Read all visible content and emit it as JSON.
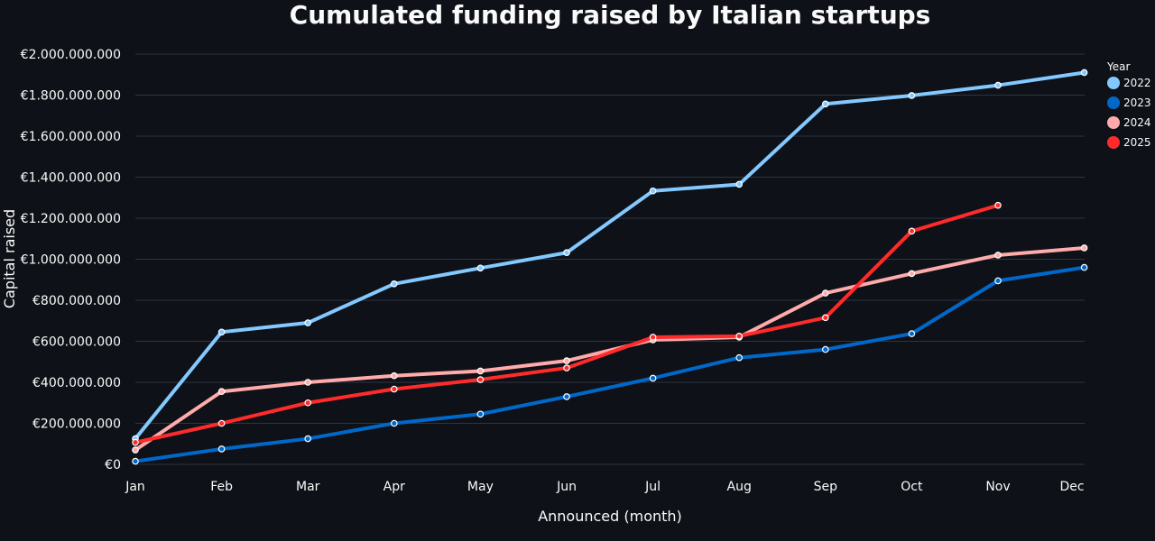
{
  "chart_data": {
    "type": "line",
    "title": "Cumulated funding raised by Italian startups",
    "xlabel": "Announced (month)",
    "ylabel": "Capital raised",
    "categories": [
      "Jan",
      "Feb",
      "Mar",
      "Apr",
      "May",
      "Jun",
      "Jul",
      "Aug",
      "Sep",
      "Oct",
      "Nov",
      "Dec"
    ],
    "ylim": [
      0,
      2000000000
    ],
    "yticks": [
      0,
      200000000,
      400000000,
      600000000,
      800000000,
      1000000000,
      1200000000,
      1400000000,
      1600000000,
      1800000000,
      2000000000
    ],
    "ytick_labels": [
      "€0",
      "€200.000.000",
      "€400.000.000",
      "€600.000.000",
      "€800.000.000",
      "€1.000.000.000",
      "€1.200.000.000",
      "€1.400.000.000",
      "€1.600.000.000",
      "€1.800.000.000",
      "€2.000.000.000"
    ],
    "grid": true,
    "legend_title": "Year",
    "legend_position": "right",
    "series": [
      {
        "name": "2022",
        "color": "#83c9ff",
        "values": [
          125000000,
          645000000,
          690000000,
          880000000,
          957000000,
          1032000000,
          1333000000,
          1365000000,
          1757000000,
          1798000000,
          1848000000,
          1910000000
        ]
      },
      {
        "name": "2023",
        "color": "#0068c9",
        "values": [
          15000000,
          75000000,
          125000000,
          200000000,
          245000000,
          330000000,
          420000000,
          520000000,
          560000000,
          637000000,
          895000000,
          960000000
        ]
      },
      {
        "name": "2024",
        "color": "#ffabab",
        "values": [
          70000000,
          355000000,
          400000000,
          432000000,
          455000000,
          505000000,
          607000000,
          620000000,
          835000000,
          930000000,
          1020000000,
          1055000000
        ]
      },
      {
        "name": "2025",
        "color": "#ff2b2b",
        "values": [
          107000000,
          200000000,
          300000000,
          367000000,
          413000000,
          470000000,
          620000000,
          625000000,
          715000000,
          1137000000,
          1263000000,
          null
        ]
      }
    ]
  }
}
